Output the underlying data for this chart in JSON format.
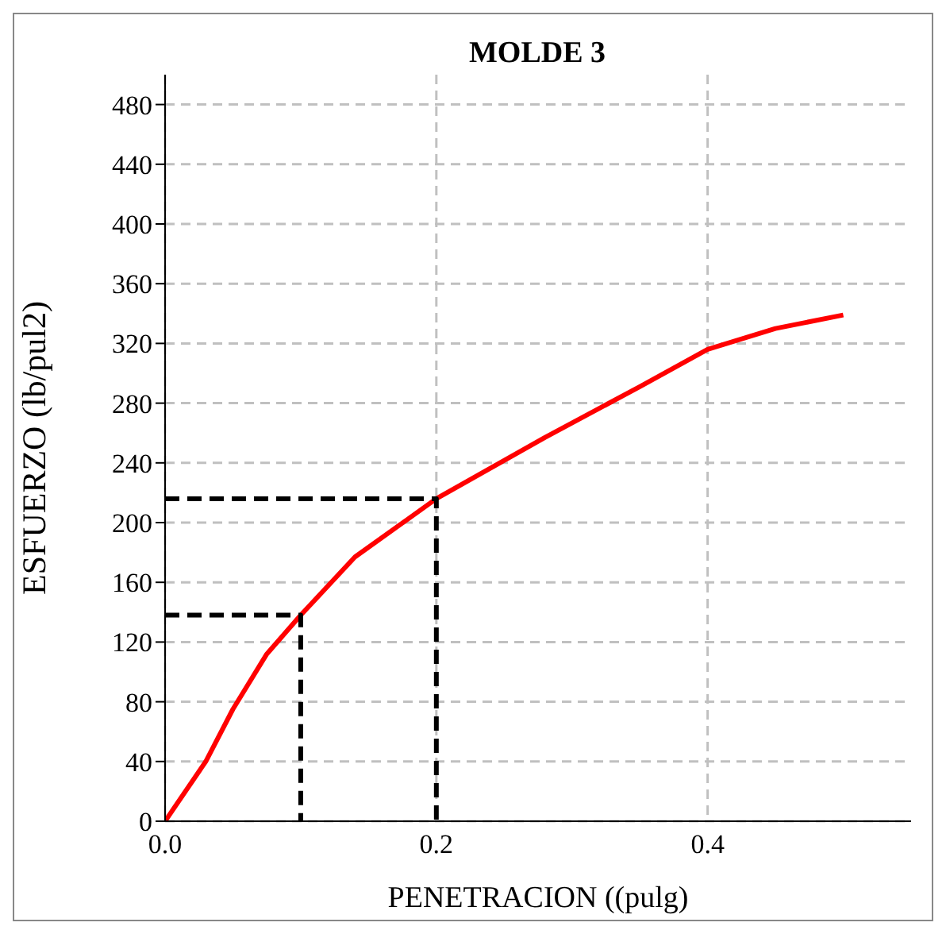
{
  "chart_data": {
    "type": "line",
    "title": "MOLDE 3",
    "xlabel": "PENETRACION ((pulg)",
    "ylabel": "ESFUERZO  (lb/pul2)",
    "xlim": [
      0,
      0.55
    ],
    "xticks": [
      {
        "value": 0,
        "label": "0.0"
      },
      0.2,
      0.4
    ],
    "ylim": [
      0,
      500
    ],
    "yticks": [
      0,
      40,
      80,
      120,
      160,
      200,
      240,
      280,
      320,
      360,
      400,
      440,
      480
    ],
    "grid": true,
    "marker": "none",
    "series": [
      {
        "color": "#ff0000",
        "line_style": "solid",
        "x": [
          0,
          0.03,
          0.05,
          0.075,
          0.1,
          0.14,
          0.2,
          0.28,
          0.35,
          0.4,
          0.45,
          0.5
        ],
        "values": [
          0,
          40,
          75,
          112,
          138,
          177,
          216,
          257,
          291,
          316,
          330,
          339
        ]
      },
      {
        "color": "#000000",
        "line_style": "dashed",
        "x": [
          0,
          0.1,
          0.1
        ],
        "values": [
          138,
          138,
          0
        ]
      },
      {
        "color": "#000000",
        "line_style": "dashed",
        "x": [
          0,
          0.2,
          0.2
        ],
        "values": [
          216,
          216,
          0
        ]
      }
    ]
  }
}
